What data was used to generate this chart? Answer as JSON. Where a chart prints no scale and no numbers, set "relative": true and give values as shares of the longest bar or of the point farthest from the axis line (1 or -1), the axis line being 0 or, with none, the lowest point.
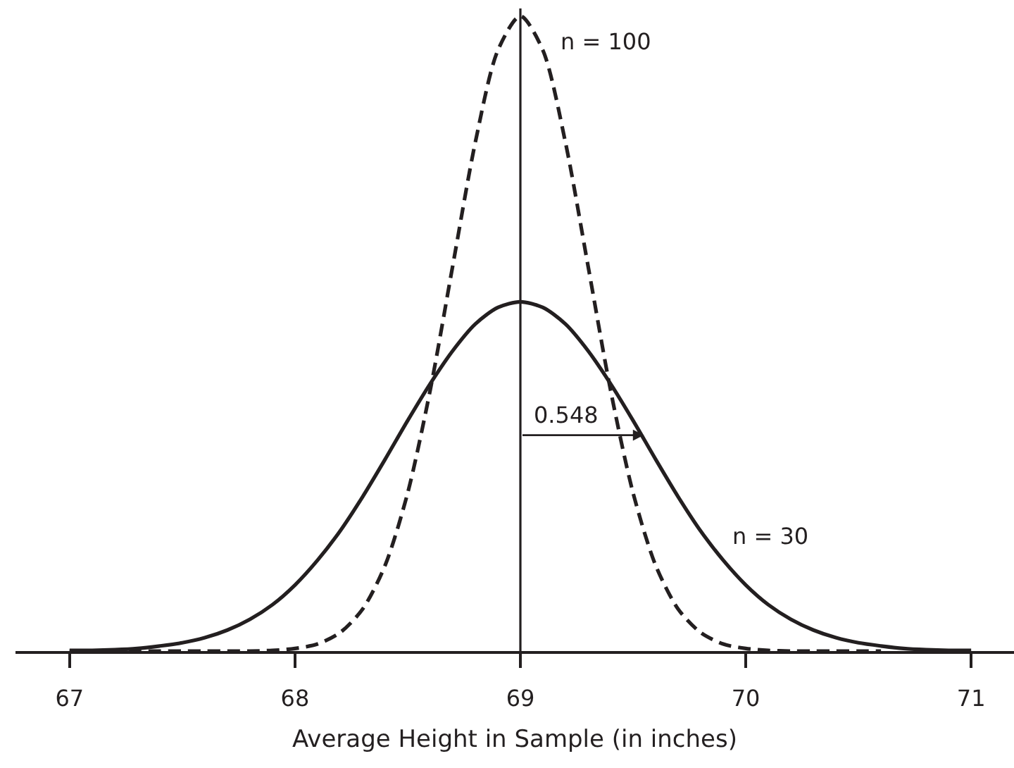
{
  "chart_data": {
    "type": "line",
    "relative": true,
    "xlabel": "Average Height in Sample (in inches)",
    "xlim": [
      66.76,
      71.19
    ],
    "xticks": [
      67,
      68,
      69,
      70,
      71
    ],
    "series": [
      {
        "name": "n = 100",
        "color": "#231f20",
        "line_style": "dashed",
        "x": [
          67.0,
          67.1,
          67.2,
          67.3,
          67.4,
          67.5,
          67.6,
          67.7,
          67.8,
          67.9,
          68.0,
          68.1,
          68.2,
          68.3,
          68.4,
          68.5,
          68.6,
          68.7,
          68.8,
          68.9,
          69.0,
          69.1,
          69.2,
          69.3,
          69.4,
          69.5,
          69.6,
          69.7,
          69.8,
          69.9,
          70.0,
          70.1,
          70.2,
          70.3,
          70.4,
          70.5,
          70.6
        ],
        "values": [
          0,
          0,
          0,
          0,
          0,
          0,
          0,
          0,
          0,
          0.001,
          0.004,
          0.011,
          0.029,
          0.066,
          0.135,
          0.249,
          0.411,
          0.607,
          0.801,
          0.946,
          1,
          0.946,
          0.801,
          0.607,
          0.411,
          0.249,
          0.135,
          0.066,
          0.029,
          0.011,
          0.004,
          0.001,
          0,
          0,
          0,
          0,
          0
        ]
      },
      {
        "name": "n = 30",
        "color": "#231f20",
        "line_style": "solid",
        "x": [
          67.0,
          67.1,
          67.2,
          67.3,
          67.4,
          67.5,
          67.6,
          67.7,
          67.8,
          67.9,
          68.0,
          68.1,
          68.2,
          68.3,
          68.4,
          68.5,
          68.6,
          68.7,
          68.8,
          68.9,
          69.0,
          69.1,
          69.2,
          69.3,
          69.4,
          69.5,
          69.6,
          69.7,
          69.8,
          69.9,
          70.0,
          70.1,
          70.2,
          70.3,
          70.4,
          70.5,
          70.6,
          70.7,
          70.8,
          70.9,
          71.0
        ],
        "values": [
          0.001,
          0.001,
          0.002,
          0.004,
          0.008,
          0.013,
          0.021,
          0.033,
          0.05,
          0.073,
          0.104,
          0.143,
          0.189,
          0.243,
          0.302,
          0.363,
          0.421,
          0.473,
          0.515,
          0.541,
          0.55,
          0.541,
          0.515,
          0.473,
          0.421,
          0.363,
          0.302,
          0.243,
          0.189,
          0.143,
          0.104,
          0.073,
          0.05,
          0.033,
          0.021,
          0.013,
          0.008,
          0.004,
          0.002,
          0.001,
          0.001
        ]
      }
    ],
    "ref_lines": [
      {
        "axis": "x",
        "value": 69,
        "color": "#231f20"
      }
    ],
    "annotations": [
      {
        "text": "0.548",
        "x": 69.548,
        "y": 0.34
      }
    ]
  }
}
